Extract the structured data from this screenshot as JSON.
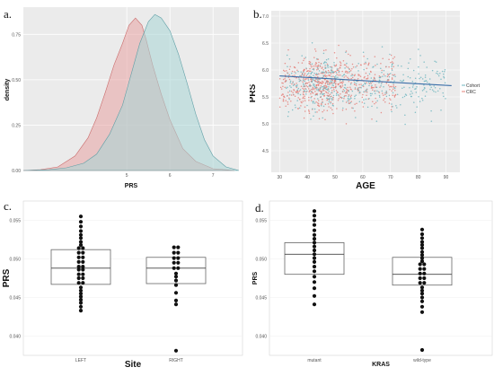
{
  "chart_data": [
    {
      "panel": "a.",
      "type": "area",
      "xlabel": "PRS",
      "ylabel": "density",
      "xlim": [
        2.6,
        7.6
      ],
      "ylim": [
        0,
        0.9
      ],
      "xticks": [
        "5",
        "6",
        "7"
      ],
      "yticks": [
        "0.00",
        "0.25",
        "0.50",
        "0.75"
      ],
      "series": [
        {
          "color": "#e8a3a3",
          "x": [
            2.6,
            3.0,
            3.4,
            3.8,
            4.1,
            4.3,
            4.5,
            4.7,
            4.9,
            5.05,
            5.2,
            5.35,
            5.45,
            5.6,
            5.8,
            6.0,
            6.3,
            6.6,
            7.0,
            7.5
          ],
          "y": [
            0.0,
            0.005,
            0.02,
            0.08,
            0.18,
            0.29,
            0.43,
            0.58,
            0.7,
            0.8,
            0.84,
            0.8,
            0.72,
            0.58,
            0.42,
            0.28,
            0.12,
            0.05,
            0.01,
            0.0
          ]
        },
        {
          "color": "#a8d6d6",
          "x": [
            2.6,
            3.2,
            3.6,
            4.0,
            4.3,
            4.6,
            4.9,
            5.1,
            5.3,
            5.5,
            5.65,
            5.8,
            6.0,
            6.2,
            6.4,
            6.6,
            6.8,
            7.0,
            7.3,
            7.6
          ],
          "y": [
            0.0,
            0.005,
            0.015,
            0.04,
            0.09,
            0.2,
            0.36,
            0.53,
            0.7,
            0.82,
            0.86,
            0.84,
            0.77,
            0.64,
            0.48,
            0.31,
            0.17,
            0.08,
            0.02,
            0.0
          ]
        }
      ]
    },
    {
      "panel": "b.",
      "type": "scatter",
      "xlabel": "AGE",
      "ylabel": "PRS",
      "xlim": [
        27,
        95
      ],
      "ylim": [
        4.1,
        7.1
      ],
      "xticks": [
        30,
        40,
        50,
        60,
        70,
        80,
        90
      ],
      "yticks": [
        "4.5",
        "5.0",
        "5.5",
        "6.0",
        "6.5",
        "7.0"
      ],
      "legend": [
        "Cohort",
        "CRC"
      ],
      "legend_position": "right",
      "series_colors": [
        "#6fb6bf",
        "#e5807a"
      ],
      "trend_line": {
        "x": [
          30,
          92
        ],
        "y": [
          5.89,
          5.71
        ],
        "color": "#3b6fa9"
      }
    },
    {
      "panel": "c.",
      "type": "box",
      "xlabel": "Site",
      "ylabel": "PRS",
      "categories": [
        "LEFT",
        "RIGHT"
      ],
      "ylim": [
        0.0375,
        0.0575
      ],
      "yticks": [
        "0.040",
        "0.045",
        "0.050",
        "0.055"
      ],
      "boxes": [
        {
          "q1": 0.0467,
          "median": 0.0488,
          "q3": 0.0512
        },
        {
          "q1": 0.0468,
          "median": 0.0488,
          "q3": 0.0502
        }
      ],
      "points": [
        [
          0.0555,
          0.0548,
          0.0542,
          0.0536,
          0.0531,
          0.0527,
          0.0522,
          0.0518,
          0.0514,
          0.0511,
          0.0508,
          0.0505,
          0.0502,
          0.0499,
          0.0496,
          0.0493,
          0.049,
          0.0488,
          0.0486,
          0.0483,
          0.048,
          0.0478,
          0.0475,
          0.0472,
          0.0469,
          0.0466,
          0.0463,
          0.0459,
          0.0455,
          0.0451,
          0.0447,
          0.0443,
          0.0438,
          0.0433
        ],
        [
          0.0515,
          0.0512,
          0.0508,
          0.0505,
          0.0501,
          0.0498,
          0.0495,
          0.0492,
          0.0488,
          0.0485,
          0.0481,
          0.0477,
          0.0472,
          0.0466,
          0.0456,
          0.0446,
          0.0441,
          0.0381
        ]
      ]
    },
    {
      "panel": "d.",
      "type": "box",
      "xlabel": "KRAS",
      "ylabel": "PRS",
      "categories": [
        "mutant",
        "wild-type"
      ],
      "ylim": [
        0.0375,
        0.0575
      ],
      "yticks": [
        "0.040",
        "0.045",
        "0.050",
        "0.055"
      ],
      "boxes": [
        {
          "q1": 0.048,
          "median": 0.0506,
          "q3": 0.0521
        },
        {
          "q1": 0.0466,
          "median": 0.048,
          "q3": 0.0502
        }
      ],
      "points": [
        [
          0.0562,
          0.0556,
          0.055,
          0.0544,
          0.0537,
          0.0531,
          0.0526,
          0.0521,
          0.0516,
          0.0511,
          0.0506,
          0.0501,
          0.0496,
          0.049,
          0.0484,
          0.0477,
          0.047,
          0.0462,
          0.0452,
          0.0441
        ],
        [
          0.0538,
          0.0532,
          0.0527,
          0.0522,
          0.0518,
          0.0514,
          0.0509,
          0.0505,
          0.0501,
          0.0497,
          0.0493,
          0.049,
          0.0487,
          0.0484,
          0.0481,
          0.0478,
          0.0475,
          0.0472,
          0.0469,
          0.0466,
          0.0463,
          0.0459,
          0.0455,
          0.045,
          0.0445,
          0.0438,
          0.0431,
          0.0382
        ]
      ]
    }
  ]
}
